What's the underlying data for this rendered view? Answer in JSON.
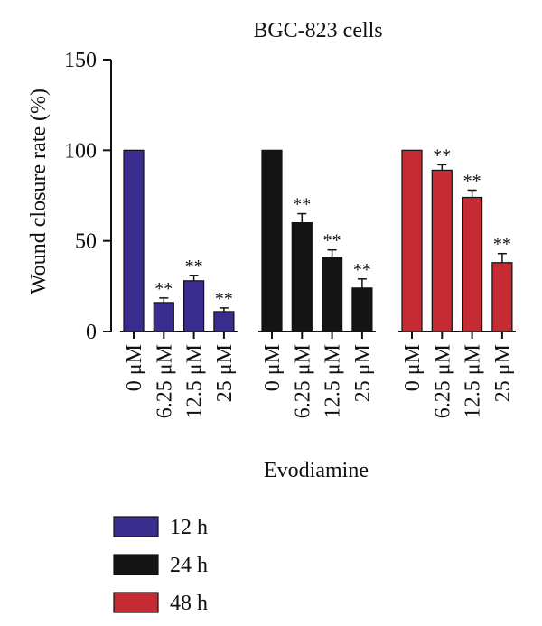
{
  "chart_data": {
    "type": "bar",
    "title": "BGC-823 cells",
    "xlabel": "Evodiamine",
    "ylabel": "Wound closure rate (%)",
    "ylim": [
      0,
      150
    ],
    "yticks": [
      "0",
      "50",
      "100",
      "150"
    ],
    "categories": [
      "0 μM",
      "6.25 μM",
      "12.5 μM",
      "25 μM"
    ],
    "significance_marker": "**",
    "series": [
      {
        "name": "12 h",
        "color": "#3a2d8f",
        "values": [
          100,
          16,
          28,
          11
        ],
        "errors": [
          0,
          2.5,
          3,
          2
        ],
        "significant": [
          false,
          true,
          true,
          true
        ]
      },
      {
        "name": "24 h",
        "color": "#141414",
        "values": [
          100,
          60,
          41,
          24
        ],
        "errors": [
          0,
          5,
          4,
          5
        ],
        "significant": [
          false,
          true,
          true,
          true
        ]
      },
      {
        "name": "48 h",
        "color": "#c62a32",
        "values": [
          100,
          89,
          74,
          38
        ],
        "errors": [
          0,
          3,
          4,
          5
        ],
        "significant": [
          false,
          true,
          true,
          true
        ]
      }
    ],
    "legend_position": "bottom-left",
    "grid": false
  }
}
